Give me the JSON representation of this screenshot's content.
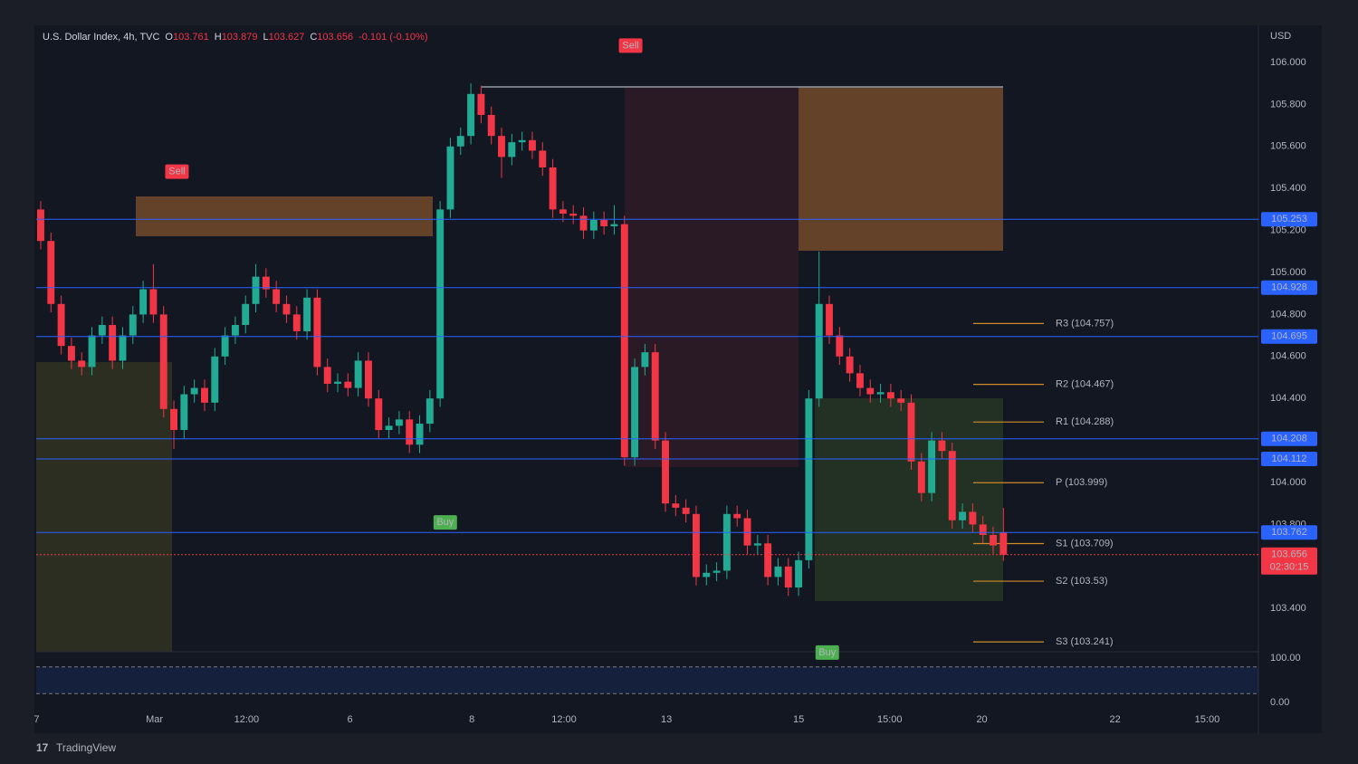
{
  "chart_data": {
    "type": "candlestick",
    "title": "U.S. Dollar Index, 4h, TVC",
    "header_labels": [
      "O",
      "H",
      "L",
      "C"
    ],
    "change": "-0.101 (-0.10%)",
    "currency": "USD",
    "brand": "TradingView",
    "countdown": "02:30:15",
    "up_color": "#22ab94",
    "down_color": "#f23645",
    "grid": false,
    "open": [
      105.3,
      105.15,
      104.85,
      104.65,
      104.58,
      104.55,
      104.7,
      104.75,
      104.58,
      104.7,
      104.8,
      104.92,
      104.8,
      104.35,
      104.25,
      104.42,
      104.45,
      104.38,
      104.6,
      104.7,
      104.75,
      104.85,
      104.98,
      104.92,
      104.85,
      104.8,
      104.72,
      104.88,
      104.55,
      104.47,
      104.48,
      104.45,
      104.58,
      104.4,
      104.25,
      104.27,
      104.3,
      104.18,
      104.28,
      104.4,
      105.3,
      105.6,
      105.65,
      105.85,
      105.75,
      105.65,
      105.55,
      105.62,
      105.63,
      105.58,
      105.5,
      105.3,
      105.28,
      105.27,
      105.2,
      105.25,
      105.22,
      105.23,
      104.12,
      104.55,
      104.62,
      104.2,
      103.9,
      103.88,
      103.85,
      103.55,
      103.57,
      103.58,
      103.85,
      103.83,
      103.7,
      103.71,
      103.55,
      103.6,
      103.5,
      103.63,
      104.4,
      104.85,
      104.7,
      104.6,
      104.52,
      104.45,
      104.42,
      104.43,
      104.4,
      104.38,
      104.1,
      103.95,
      104.2,
      104.15,
      103.82,
      103.86,
      103.8,
      103.75,
      103.761
    ],
    "high": [
      105.34,
      105.19,
      104.89,
      104.69,
      104.62,
      104.74,
      104.79,
      104.79,
      104.74,
      104.84,
      104.96,
      105.04,
      104.84,
      104.39,
      104.46,
      104.49,
      104.49,
      104.64,
      104.74,
      104.79,
      104.89,
      105.04,
      105.02,
      104.96,
      104.89,
      104.84,
      104.92,
      104.92,
      104.59,
      104.52,
      104.52,
      104.62,
      104.62,
      104.44,
      104.31,
      104.34,
      104.34,
      104.32,
      104.44,
      105.34,
      105.64,
      105.69,
      105.9,
      105.89,
      105.79,
      105.69,
      105.66,
      105.67,
      105.67,
      105.62,
      105.54,
      105.34,
      105.32,
      105.31,
      105.29,
      105.29,
      105.32,
      105.27,
      104.59,
      104.66,
      104.66,
      104.24,
      103.94,
      103.92,
      103.89,
      103.61,
      103.62,
      103.89,
      103.89,
      103.87,
      103.75,
      103.75,
      103.64,
      103.64,
      103.67,
      104.44,
      105.1,
      104.89,
      104.74,
      104.64,
      104.56,
      104.49,
      104.47,
      104.47,
      104.44,
      104.42,
      104.14,
      104.24,
      104.24,
      104.19,
      103.9,
      103.9,
      103.84,
      103.79,
      103.879
    ],
    "low": [
      105.11,
      104.81,
      104.61,
      104.54,
      104.51,
      104.51,
      104.66,
      104.54,
      104.54,
      104.66,
      104.76,
      104.76,
      104.31,
      104.16,
      104.21,
      104.38,
      104.34,
      104.34,
      104.56,
      104.66,
      104.71,
      104.81,
      104.88,
      104.81,
      104.76,
      104.68,
      104.68,
      104.51,
      104.43,
      104.43,
      104.41,
      104.41,
      104.36,
      104.21,
      104.21,
      104.23,
      104.14,
      104.14,
      104.24,
      104.36,
      105.26,
      105.56,
      105.61,
      105.71,
      105.61,
      105.45,
      105.51,
      105.58,
      105.54,
      105.46,
      105.26,
      105.24,
      105.23,
      105.16,
      105.16,
      105.18,
      105.18,
      104.08,
      104.08,
      104.51,
      104.16,
      103.86,
      103.84,
      103.81,
      103.51,
      103.51,
      103.53,
      103.54,
      103.79,
      103.66,
      103.66,
      103.51,
      103.51,
      103.46,
      103.46,
      103.59,
      104.36,
      104.66,
      104.56,
      104.48,
      104.41,
      104.38,
      104.38,
      104.36,
      104.34,
      104.06,
      103.91,
      103.91,
      104.11,
      103.78,
      103.78,
      103.76,
      103.71,
      103.66,
      103.627
    ],
    "close": [
      105.15,
      104.85,
      104.65,
      104.58,
      104.55,
      104.7,
      104.75,
      104.58,
      104.7,
      104.8,
      104.92,
      104.8,
      104.35,
      104.25,
      104.42,
      104.45,
      104.38,
      104.6,
      104.7,
      104.75,
      104.85,
      104.98,
      104.92,
      104.85,
      104.8,
      104.72,
      104.88,
      104.55,
      104.47,
      104.48,
      104.45,
      104.58,
      104.4,
      104.25,
      104.27,
      104.3,
      104.18,
      104.28,
      104.4,
      105.3,
      105.6,
      105.65,
      105.85,
      105.75,
      105.65,
      105.55,
      105.62,
      105.63,
      105.58,
      105.5,
      105.3,
      105.28,
      105.27,
      105.2,
      105.25,
      105.22,
      105.23,
      104.12,
      104.55,
      104.62,
      104.2,
      103.9,
      103.88,
      103.85,
      103.55,
      103.57,
      103.58,
      103.85,
      103.83,
      103.7,
      103.71,
      103.55,
      103.6,
      103.5,
      103.63,
      104.4,
      104.85,
      104.7,
      104.6,
      104.52,
      104.45,
      104.42,
      104.43,
      104.4,
      104.38,
      104.1,
      103.95,
      104.2,
      104.15,
      103.82,
      103.86,
      103.8,
      103.75,
      103.7,
      103.656
    ],
    "xlim": [
      -0.44,
      118.9
    ],
    "xticks": [
      {
        "value": -0.4,
        "label": "7"
      },
      {
        "value": 11.1,
        "label": "Mar"
      },
      {
        "value": 20.1,
        "label": "12:00"
      },
      {
        "value": 30.2,
        "label": "6"
      },
      {
        "value": 42.1,
        "label": "8"
      },
      {
        "value": 51.1,
        "label": "12:00"
      },
      {
        "value": 61.1,
        "label": "13"
      },
      {
        "value": 74.0,
        "label": "15"
      },
      {
        "value": 82.9,
        "label": "15:00"
      },
      {
        "value": 91.9,
        "label": "20"
      },
      {
        "value": 104.9,
        "label": "22"
      },
      {
        "value": 113.9,
        "label": "15:00"
      }
    ],
    "ylim": [
      103.194,
      106.168
    ],
    "yticks": [
      {
        "value": 106,
        "label": "106.000"
      },
      {
        "value": 105.8,
        "label": "105.800"
      },
      {
        "value": 105.6,
        "label": "105.600"
      },
      {
        "value": 105.4,
        "label": "105.400"
      },
      {
        "value": 105.2,
        "label": "105.200"
      },
      {
        "value": 105,
        "label": "105.000"
      },
      {
        "value": 104.8,
        "label": "104.800"
      },
      {
        "value": 104.6,
        "label": "104.600"
      },
      {
        "value": 104.4,
        "label": "104.400"
      },
      {
        "value": 104,
        "label": "104.000"
      },
      {
        "value": 103.8,
        "label": "103.800"
      },
      {
        "value": 103.4,
        "label": "103.400"
      }
    ],
    "price_lines": [
      105.253,
      104.928,
      104.695,
      104.208,
      104.112,
      103.762
    ],
    "pivots": [
      {
        "label": "R3 (104.757)",
        "value": 104.757
      },
      {
        "label": "R2 (104.467)",
        "value": 104.467
      },
      {
        "label": "R1 (104.288)",
        "value": 104.288
      },
      {
        "label": "P (103.999)",
        "value": 103.999
      },
      {
        "label": "S1 (103.709)",
        "value": 103.709
      },
      {
        "label": "S2 (103.53)",
        "value": 103.53
      },
      {
        "label": "S3 (103.241)",
        "value": 103.241
      }
    ],
    "annotations": [
      {
        "text": "Sell",
        "x": 13.3,
        "y": 105.48
      },
      {
        "text": "Sell",
        "x": 57.6,
        "y": 106.08
      },
      {
        "text": "Buy",
        "x": 39.5,
        "y": 103.81
      },
      {
        "text": "Buy",
        "x": 76.8,
        "y": 103.19
      }
    ],
    "oscillator": {
      "ylim": [
        -18,
        110
      ],
      "yticks": [
        {
          "value": 100,
          "label": "100.00"
        },
        {
          "value": 0,
          "label": "0.00"
        }
      ],
      "bands": [
        80,
        20
      ]
    }
  }
}
